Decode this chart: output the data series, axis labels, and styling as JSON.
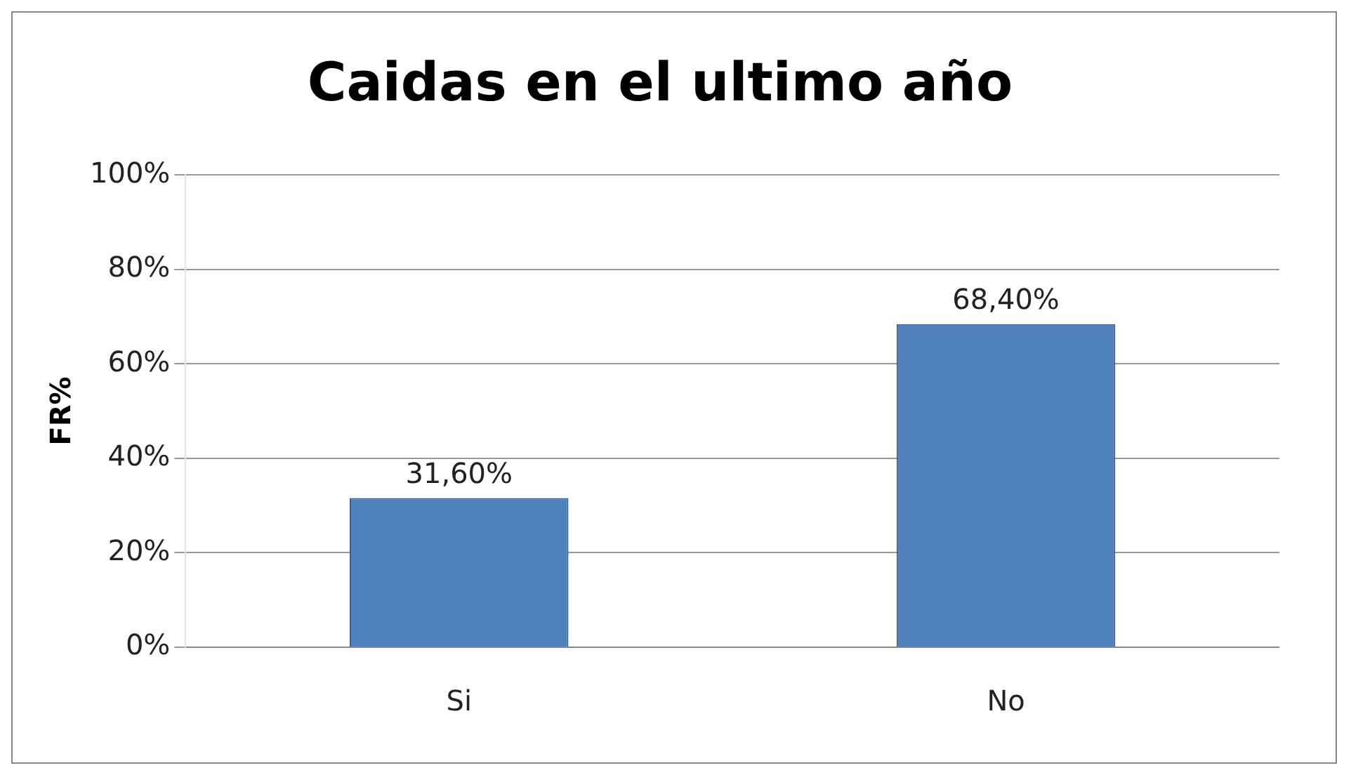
{
  "chart_data": {
    "type": "bar",
    "title": "Caidas en el ultimo año",
    "ylabel": "FR%",
    "categories": [
      "Si",
      "No"
    ],
    "values": [
      31.6,
      68.4
    ],
    "value_labels": [
      "31,60%",
      "68,40%"
    ],
    "color": "#4f81bd",
    "ylim": [
      0,
      100
    ],
    "yticks": [
      {
        "value": 0,
        "label": "0%"
      },
      {
        "value": 20,
        "label": "20%"
      },
      {
        "value": 40,
        "label": "40%"
      },
      {
        "value": 60,
        "label": "60%"
      },
      {
        "value": 80,
        "label": "80%"
      },
      {
        "value": 100,
        "label": "100%"
      }
    ],
    "grid": "y"
  }
}
